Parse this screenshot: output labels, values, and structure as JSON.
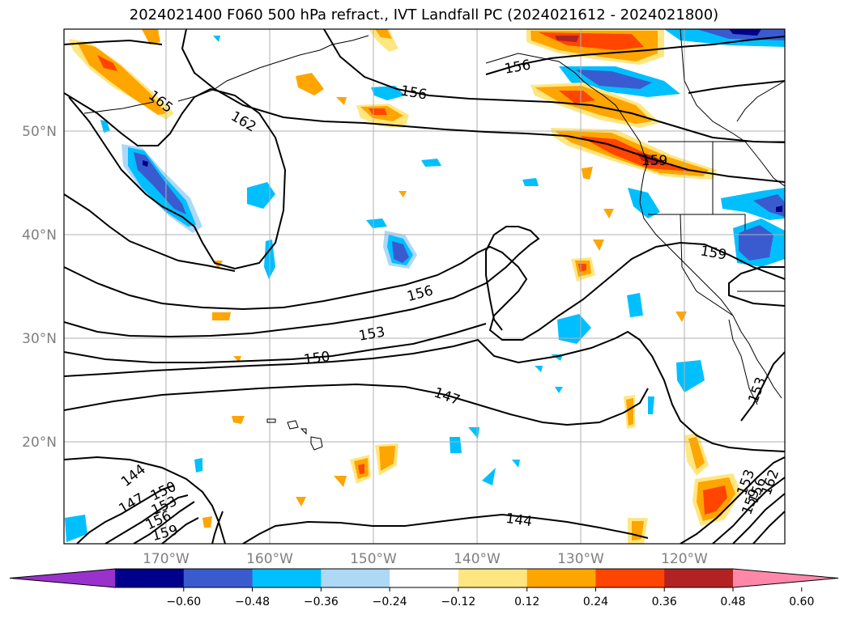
{
  "title": "2024021400 F060 500 hPa refract., IVT Landfall PC (2024021612 - 2024021800)",
  "lat_labels": [
    "50°N",
    "40°N",
    "30°N",
    "20°N"
  ],
  "lon_labels": [
    "170°W",
    "160°W",
    "150°W",
    "140°W",
    "130°W",
    "120°W"
  ],
  "colorbar": {
    "ticks": [
      "−0.60",
      "−0.48",
      "−0.36",
      "−0.24",
      "−0.12",
      "0.12",
      "0.24",
      "0.36",
      "0.48",
      "0.60"
    ],
    "colors": [
      "#9932cc",
      "#00008b",
      "#3a5bcf",
      "#00bfff",
      "#add8f6",
      "#ffffff",
      "#ffe680",
      "#ffa500",
      "#ff4500",
      "#b22222",
      "#ff88aa"
    ]
  },
  "contour_labels": [
    "165",
    "162",
    "156",
    "156",
    "156",
    "159",
    "159",
    "153",
    "150",
    "147",
    "144",
    "147",
    "150",
    "153",
    "156",
    "159",
    "144",
    "153",
    "156",
    "159",
    "162",
    "153"
  ],
  "colors": {
    "grid": "#b0b0b0",
    "contour": "#000000",
    "coast": "#000000"
  }
}
